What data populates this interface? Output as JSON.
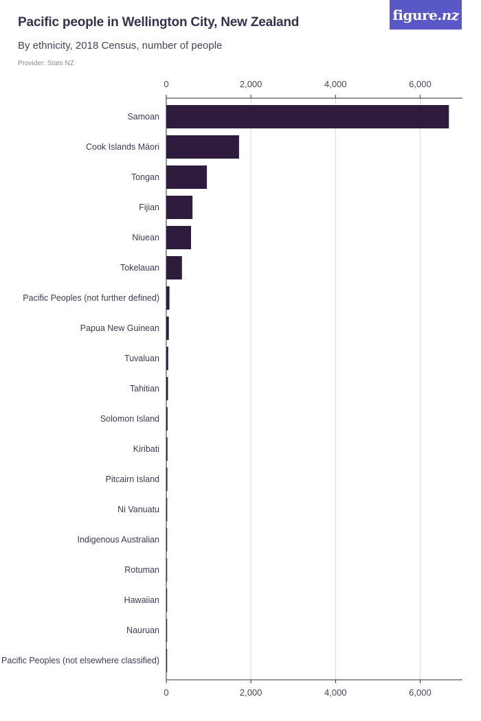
{
  "header": {
    "title": "Pacific people in Wellington City, New Zealand",
    "subtitle": "By ethnicity, 2018 Census, number of people",
    "provider": "Provider: Stats NZ",
    "logo_text": "figure.",
    "logo_suffix": "nz"
  },
  "colors": {
    "bar": "#2e1b3d",
    "grid": "#d9d9de",
    "axis": "#2b2b45"
  },
  "chart_data": {
    "type": "bar",
    "orientation": "horizontal",
    "title": "Pacific people in Wellington City, New Zealand",
    "subtitle": "By ethnicity, 2018 Census, number of people",
    "xlabel": "",
    "ylabel": "",
    "xlim": [
      0,
      7000
    ],
    "xticks": [
      0,
      2000,
      4000,
      6000
    ],
    "xtick_labels": [
      "0",
      "2,000",
      "4,000",
      "6,000"
    ],
    "grid": true,
    "categories": [
      "Samoan",
      "Cook Islands Māori",
      "Tongan",
      "Fijian",
      "Niuean",
      "Tokelauan",
      "Pacific Peoples (not further defined)",
      "Papua New Guinean",
      "Tuvaluan",
      "Tahitian",
      "Solomon Island",
      "Kiribati",
      "Pitcairn Island",
      "Ni Vanuatu",
      "Indigenous Australian",
      "Rotuman",
      "Hawaiian",
      "Nauruan",
      "Pacific Peoples (not elsewhere classified)"
    ],
    "values": [
      6680,
      1720,
      960,
      620,
      585,
      370,
      75,
      60,
      45,
      40,
      30,
      28,
      25,
      22,
      20,
      15,
      10,
      5,
      3
    ]
  }
}
